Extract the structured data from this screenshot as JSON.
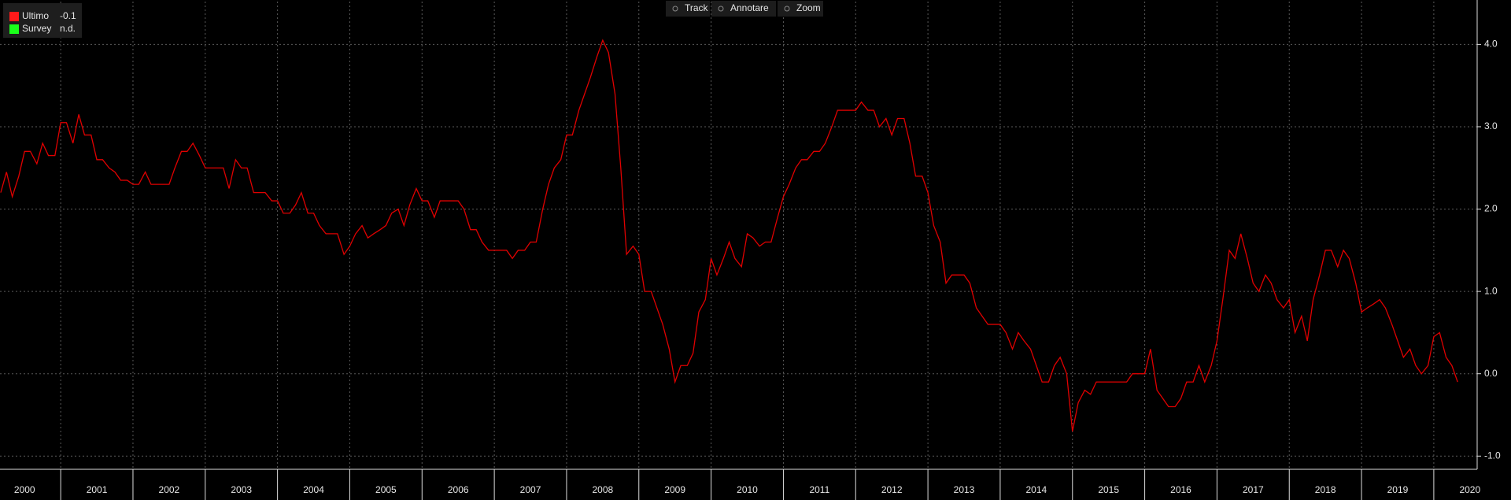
{
  "chart_data": {
    "type": "line",
    "toolbar": [
      "Track",
      "Annotare",
      "Zoom"
    ],
    "legend": [
      {
        "name": "Ultimo",
        "value": "-0.1",
        "color": "#ff1a1a"
      },
      {
        "name": "Survey",
        "value": "n.d.",
        "color": "#1aff1a"
      }
    ],
    "x": [
      2000.17,
      2000.25,
      2000.33,
      2000.42,
      2000.5,
      2000.58,
      2000.67,
      2000.75,
      2000.83,
      2000.92,
      2001,
      2001.08,
      2001.17,
      2001.25,
      2001.33,
      2001.42,
      2001.5,
      2001.58,
      2001.67,
      2001.75,
      2001.83,
      2001.92,
      2002,
      2002.08,
      2002.17,
      2002.25,
      2002.33,
      2002.42,
      2002.5,
      2002.58,
      2002.67,
      2002.75,
      2002.83,
      2002.92,
      2003,
      2003.08,
      2003.17,
      2003.25,
      2003.33,
      2003.42,
      2003.5,
      2003.58,
      2003.67,
      2003.75,
      2003.83,
      2003.92,
      2004,
      2004.08,
      2004.17,
      2004.25,
      2004.33,
      2004.42,
      2004.5,
      2004.58,
      2004.67,
      2004.75,
      2004.83,
      2004.92,
      2005,
      2005.08,
      2005.17,
      2005.25,
      2005.33,
      2005.42,
      2005.5,
      2005.58,
      2005.67,
      2005.75,
      2005.83,
      2005.92,
      2006,
      2006.08,
      2006.17,
      2006.25,
      2006.33,
      2006.42,
      2006.5,
      2006.58,
      2006.67,
      2006.75,
      2006.83,
      2006.92,
      2007,
      2007.08,
      2007.17,
      2007.25,
      2007.33,
      2007.42,
      2007.5,
      2007.58,
      2007.67,
      2007.75,
      2007.83,
      2007.92,
      2008,
      2008.08,
      2008.17,
      2008.25,
      2008.33,
      2008.42,
      2008.5,
      2008.58,
      2008.67,
      2008.75,
      2008.83,
      2008.92,
      2009,
      2009.08,
      2009.17,
      2009.25,
      2009.33,
      2009.42,
      2009.5,
      2009.58,
      2009.67,
      2009.75,
      2009.83,
      2009.92,
      2010,
      2010.08,
      2010.17,
      2010.25,
      2010.33,
      2010.42,
      2010.5,
      2010.58,
      2010.67,
      2010.75,
      2010.83,
      2010.92,
      2011,
      2011.08,
      2011.17,
      2011.25,
      2011.33,
      2011.42,
      2011.5,
      2011.58,
      2011.67,
      2011.75,
      2011.83,
      2011.92,
      2012,
      2012.08,
      2012.17,
      2012.25,
      2012.33,
      2012.42,
      2012.5,
      2012.58,
      2012.67,
      2012.75,
      2012.83,
      2012.92,
      2013,
      2013.08,
      2013.17,
      2013.25,
      2013.33,
      2013.42,
      2013.5,
      2013.58,
      2013.67,
      2013.75,
      2013.83,
      2013.92,
      2014,
      2014.08,
      2014.17,
      2014.25,
      2014.33,
      2014.42,
      2014.5,
      2014.58,
      2014.67,
      2014.75,
      2014.83,
      2014.92,
      2015,
      2015.08,
      2015.17,
      2015.25,
      2015.33,
      2015.42,
      2015.5,
      2015.58,
      2015.67,
      2015.75,
      2015.83,
      2015.92,
      2016,
      2016.08,
      2016.17,
      2016.25,
      2016.33,
      2016.42,
      2016.5,
      2016.58,
      2016.67,
      2016.75,
      2016.83,
      2016.92,
      2017,
      2017.08,
      2017.17,
      2017.25,
      2017.33,
      2017.42,
      2017.5,
      2017.58,
      2017.67,
      2017.75,
      2017.83,
      2017.92,
      2018,
      2018.08,
      2018.17,
      2018.25,
      2018.33,
      2018.42,
      2018.5,
      2018.58,
      2018.67,
      2018.75,
      2018.83,
      2018.92,
      2019,
      2019.08,
      2019.17,
      2019.25,
      2019.33,
      2019.42,
      2019.5,
      2019.58,
      2019.67,
      2019.75,
      2019.83,
      2019.92,
      2020,
      2020.08,
      2020.17,
      2020.25,
      2020.33
    ],
    "series": [
      {
        "color": "#e00000",
        "values": [
          2.2,
          2.45,
          2.15,
          2.4,
          2.7,
          2.7,
          2.55,
          2.8,
          2.65,
          2.65,
          3.05,
          3.05,
          2.8,
          3.15,
          2.9,
          2.9,
          2.6,
          2.6,
          2.5,
          2.45,
          2.35,
          2.35,
          2.3,
          2.3,
          2.45,
          2.3,
          2.3,
          2.3,
          2.3,
          2.5,
          2.7,
          2.7,
          2.8,
          2.65,
          2.5,
          2.5,
          2.5,
          2.5,
          2.25,
          2.6,
          2.5,
          2.5,
          2.2,
          2.2,
          2.2,
          2.1,
          2.1,
          1.95,
          1.95,
          2.05,
          2.2,
          1.95,
          1.95,
          1.8,
          1.7,
          1.7,
          1.7,
          1.45,
          1.55,
          1.7,
          1.8,
          1.65,
          1.7,
          1.75,
          1.8,
          1.95,
          2.0,
          1.8,
          2.05,
          2.25,
          2.1,
          2.1,
          1.9,
          2.1,
          2.1,
          2.1,
          2.1,
          2.0,
          1.75,
          1.75,
          1.6,
          1.5,
          1.5,
          1.5,
          1.5,
          1.4,
          1.5,
          1.5,
          1.6,
          1.6,
          2.0,
          2.3,
          2.5,
          2.6,
          2.9,
          2.9,
          3.2,
          3.4,
          3.6,
          3.85,
          4.05,
          3.9,
          3.4,
          2.5,
          1.45,
          1.55,
          1.45,
          1.0,
          1.0,
          0.8,
          0.6,
          0.3,
          -0.1,
          0.1,
          0.1,
          0.25,
          0.75,
          0.9,
          1.4,
          1.2,
          1.4,
          1.6,
          1.4,
          1.3,
          1.7,
          1.65,
          1.55,
          1.6,
          1.6,
          1.9,
          2.15,
          2.3,
          2.5,
          2.6,
          2.6,
          2.7,
          2.7,
          2.8,
          3.0,
          3.2,
          3.2,
          3.2,
          3.2,
          3.3,
          3.2,
          3.2,
          3.0,
          3.1,
          2.9,
          3.1,
          3.1,
          2.8,
          2.4,
          2.4,
          2.2,
          1.8,
          1.6,
          1.1,
          1.2,
          1.2,
          1.2,
          1.1,
          0.8,
          0.7,
          0.6,
          0.6,
          0.6,
          0.5,
          0.3,
          0.5,
          0.4,
          0.3,
          0.1,
          -0.1,
          -0.1,
          0.1,
          0.2,
          0.0,
          -0.7,
          -0.35,
          -0.2,
          -0.25,
          -0.1,
          -0.1,
          -0.1,
          -0.1,
          -0.1,
          -0.1,
          0.0,
          0.0,
          0.0,
          0.3,
          -0.2,
          -0.3,
          -0.4,
          -0.4,
          -0.3,
          -0.1,
          -0.1,
          0.1,
          -0.1,
          0.1,
          0.4,
          0.9,
          1.5,
          1.4,
          1.7,
          1.4,
          1.1,
          1.0,
          1.2,
          1.1,
          0.9,
          0.8,
          0.9,
          0.5,
          0.7,
          0.4,
          0.9,
          1.2,
          1.5,
          1.5,
          1.3,
          1.5,
          1.4,
          1.1,
          0.75,
          0.8,
          0.85,
          0.9,
          0.8,
          0.6,
          0.4,
          0.2,
          0.3,
          0.1,
          0.0,
          0.1,
          0.45,
          0.5,
          0.2,
          0.1,
          -0.1
        ]
      }
    ],
    "xlim": [
      2000.16,
      2020.6
    ],
    "xticks": [
      2001,
      2002,
      2003,
      2004,
      2005,
      2006,
      2007,
      2008,
      2009,
      2010,
      2011,
      2012,
      2013,
      2014,
      2015,
      2016,
      2017,
      2018,
      2019,
      2020
    ],
    "year_labels": [
      "2000",
      "2001",
      "2002",
      "2003",
      "2004",
      "2005",
      "2006",
      "2007",
      "2008",
      "2009",
      "2010",
      "2011",
      "2012",
      "2013",
      "2014",
      "2015",
      "2016",
      "2017",
      "2018",
      "2019",
      "2020"
    ],
    "ylim": [
      -1.16,
      4.52
    ],
    "yticks": [
      {
        "value": -1,
        "label": "-1.0"
      },
      {
        "value": 0,
        "label": "0.0"
      },
      {
        "value": 1,
        "label": "1.0"
      },
      {
        "value": 2,
        "label": "2.0"
      },
      {
        "value": 3,
        "label": "3.0"
      },
      {
        "value": 4,
        "label": "4.0"
      }
    ],
    "grid": true
  }
}
